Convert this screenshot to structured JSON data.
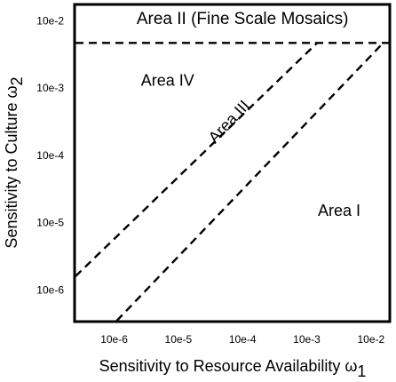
{
  "chart_data": {
    "type": "line",
    "xlabel": "Sensitivity to Resource Availability ω",
    "xlabel_subscript": "1",
    "ylabel": "Sensitivity to Culture ω",
    "ylabel_subscript": "2",
    "x_scale": "log",
    "y_scale": "log",
    "x_ticks": [
      {
        "value": 1e-06,
        "label": "10e-6"
      },
      {
        "value": 1e-05,
        "label": "10e-5"
      },
      {
        "value": 0.0001,
        "label": "10e-4"
      },
      {
        "value": 0.001,
        "label": "10e-3"
      },
      {
        "value": 0.01,
        "label": "10e-2"
      }
    ],
    "y_ticks": [
      {
        "value": 1e-06,
        "label": "10e-6"
      },
      {
        "value": 1e-05,
        "label": "10e-5"
      },
      {
        "value": 0.0001,
        "label": "10e-4"
      },
      {
        "value": 0.001,
        "label": "10e-3"
      },
      {
        "value": 0.01,
        "label": "10e-2"
      }
    ],
    "xlim": [
      2.5e-07,
      0.019
    ],
    "ylim": [
      3.5e-07,
      0.017
    ],
    "grid": false,
    "series": [
      {
        "style": "dashed",
        "points": [
          [
            2.5e-07,
            1.6e-06
          ],
          [
            0.00145,
            0.0047
          ]
        ]
      },
      {
        "style": "dashed",
        "points": [
          [
            1.1e-06,
            3.5e-07
          ],
          [
            0.0155,
            0.0047
          ]
        ]
      },
      {
        "style": "dashed",
        "points": [
          [
            2.5e-07,
            0.0047
          ],
          [
            0.019,
            0.0047
          ]
        ]
      }
    ],
    "annotations": [
      {
        "text": "Area II (Fine Scale Mosaics)",
        "x": 0.0001,
        "y": 0.0105,
        "rotation": 0
      },
      {
        "text": "Area IV",
        "x": 6.8e-06,
        "y": 0.00125,
        "rotation": 0
      },
      {
        "text": "Area III",
        "x": 6.3e-05,
        "y": 0.00031,
        "rotation": -47
      },
      {
        "text": "Area I",
        "x": 0.0032,
        "y": 1.45e-05,
        "rotation": 0
      }
    ]
  }
}
